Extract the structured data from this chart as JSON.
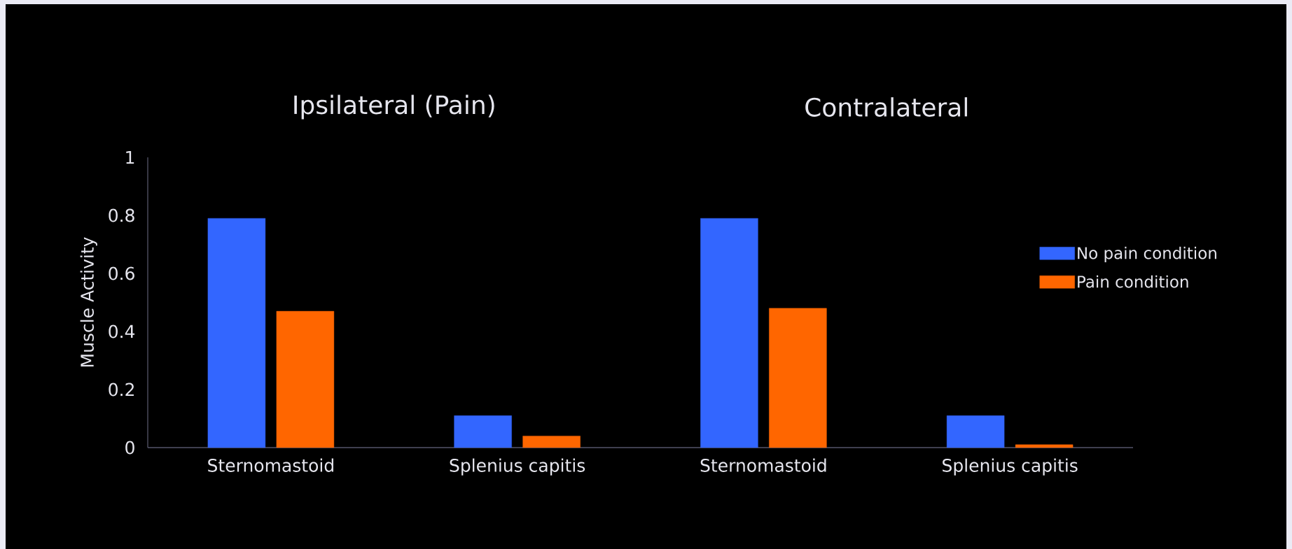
{
  "chart_data": {
    "type": "bar",
    "ylabel": "Muscle Activity",
    "categories": [
      "Sternomastoid",
      "Splenius capitis",
      "Sternomastoid",
      "Splenius capitis"
    ],
    "series": [
      {
        "name": "No pain condition",
        "color": "#3366ff",
        "values": [
          0.79,
          0.11,
          0.79,
          0.11
        ]
      },
      {
        "name": "Pain condition",
        "color": "#ff6600",
        "values": [
          0.47,
          0.04,
          0.48,
          0.01
        ]
      }
    ],
    "annotations": [
      "Ipsilateral (Pain)",
      "Contralateral"
    ],
    "ylim": [
      0,
      1
    ],
    "yticks": [
      0,
      0.2,
      0.4,
      0.6,
      0.8,
      1
    ],
    "legend": "right"
  }
}
